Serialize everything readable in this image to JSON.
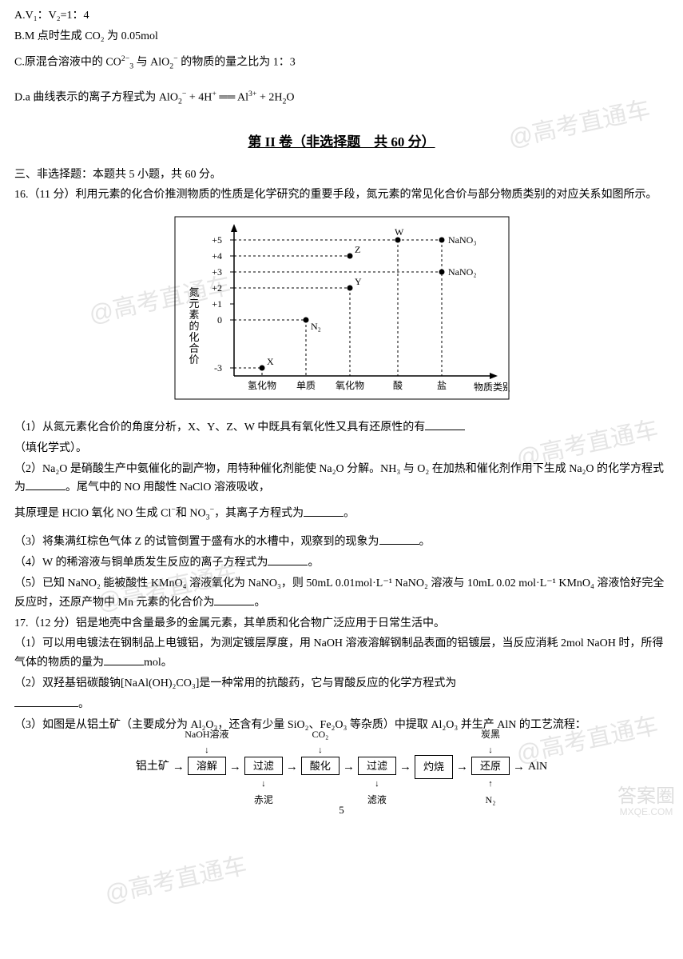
{
  "options": {
    "a": "A.V₁：V₂=1：4",
    "b": "B.M 点时生成 CO₂ 为 0.05mol",
    "c_pre": "C.原混合溶液中的 CO",
    "c_sup1": "2−",
    "c_sub1": "3",
    "c_mid": " 与 AlO",
    "c_sub2": "2",
    "c_sup2": "−",
    "c_post": " 的物质的量之比为 1：3",
    "d_pre": "D.a 曲线表示的离子方程式为 AlO",
    "d_sub1": "2",
    "d_sup1": "−",
    "d_mid1": " + 4H",
    "d_sup2": "+",
    "d_eq": " ══ Al",
    "d_sup3": "3+",
    "d_mid2": " + 2H",
    "d_sub2": "2",
    "d_post": "O"
  },
  "section2": {
    "title": "第 II 卷（非选择题　共 60 分）",
    "header": "三、非选择题：本题共 5 小题，共 60 分。"
  },
  "q16": {
    "intro": "16.（11 分）利用元素的化合价推测物质的性质是化学研究的重要手段，氮元素的常见化合价与部分物质类别的对应关系如图所示。",
    "sub1": "（1）从氮元素化合价的角度分析，X、Y、Z、W 中既具有氧化性又具有还原性的有",
    "sub1_post": "（填化学式）。",
    "sub2a": "（2）Na₂O 是硝酸生产中氨催化的副产物，用特种催化剂能使 Na₂O 分解。NH₃ 与 O₂ 在加热和催化剂作用下生成 Na₂O 的化学方程式为",
    "sub2b": "。尾气中的 NO 用酸性 NaClO 溶液吸收，",
    "sub2c_pre": "其原理是 HClO 氧化 NO 生成 Cl",
    "sub2c_sup1": "−",
    "sub2c_mid": "和 NO",
    "sub2c_sub1": "3",
    "sub2c_sup2": "−",
    "sub2c_post": "，其离子方程式为",
    "sub2c_end": "。",
    "sub3": "（3）将集满红棕色气体 Z 的试管倒置于盛有水的水槽中，观察到的现象为",
    "sub3_end": "。",
    "sub4": "（4）W 的稀溶液与铜单质发生反应的离子方程式为",
    "sub4_end": "。",
    "sub5": "（5）已知 NaNO₂ 能被酸性 KMnO₄ 溶液氧化为 NaNO₃，则 50mL 0.01mol·L⁻¹ NaNO₂ 溶液与 10mL 0.02 mol·L⁻¹ KMnO₄ 溶液恰好完全反应时，还原产物中 Mn 元素的化合价为",
    "sub5_end": "。"
  },
  "q17": {
    "intro": "17.（12 分）铝是地壳中含量最多的金属元素，其单质和化合物广泛应用于日常生活中。",
    "sub1": "（1）可以用电镀法在钢制品上电镀铝，为测定镀层厚度，用 NaOH 溶液溶解钢制品表面的铝镀层，当反应消耗 2mol NaOH 时，所得气体的物质的量为",
    "sub1_end": "mol。",
    "sub2": "（2）双羟基铝碳酸钠[NaAl(OH)₂CO₃]是一种常用的抗酸药，它与胃酸反应的化学方程式为",
    "sub2_end": "。",
    "sub3": "（3）如图是从铝土矿（主要成分为 Al₂O₃，还含有少量 SiO₂、Fe₂O₃ 等杂质）中提取 Al₂O₃ 并生产 AlN 的工艺流程："
  },
  "chart": {
    "y_label": "氮元素的化合价",
    "x_labels": [
      "氢化物",
      "单质",
      "氧化物",
      "酸",
      "盐"
    ],
    "x_axis_label": "物质类别",
    "y_ticks": [
      "+5",
      "+4",
      "+3",
      "+2",
      "+1",
      "0",
      "-3"
    ],
    "points": {
      "X": "X",
      "N2": "N₂",
      "Y": "Y",
      "Z": "Z",
      "W": "W",
      "NaNO3": "NaNO₃",
      "NaNO2": "NaNO₂"
    },
    "grid_color": "#000",
    "dot_color": "#000",
    "bg": "#fff"
  },
  "flow": {
    "start": "铝土矿",
    "step1": "溶解",
    "step1_top": "NaOH溶液",
    "step2": "过滤",
    "step2_bot": "赤泥",
    "step3": "酸化",
    "step3_top": "CO₂",
    "step4": "过滤",
    "step4_bot": "滤液",
    "step5": "灼烧",
    "step6": "还原",
    "step6_top": "炭黑",
    "step6_bot": "N₂",
    "end": "AlN",
    "arrow": "→",
    "down_arrow": "↓",
    "up_arrow": "↑"
  },
  "watermark": "@高考直通车",
  "footer_wm": {
    "big": "答案圈",
    "small": "MXQE.COM"
  },
  "page": "5"
}
